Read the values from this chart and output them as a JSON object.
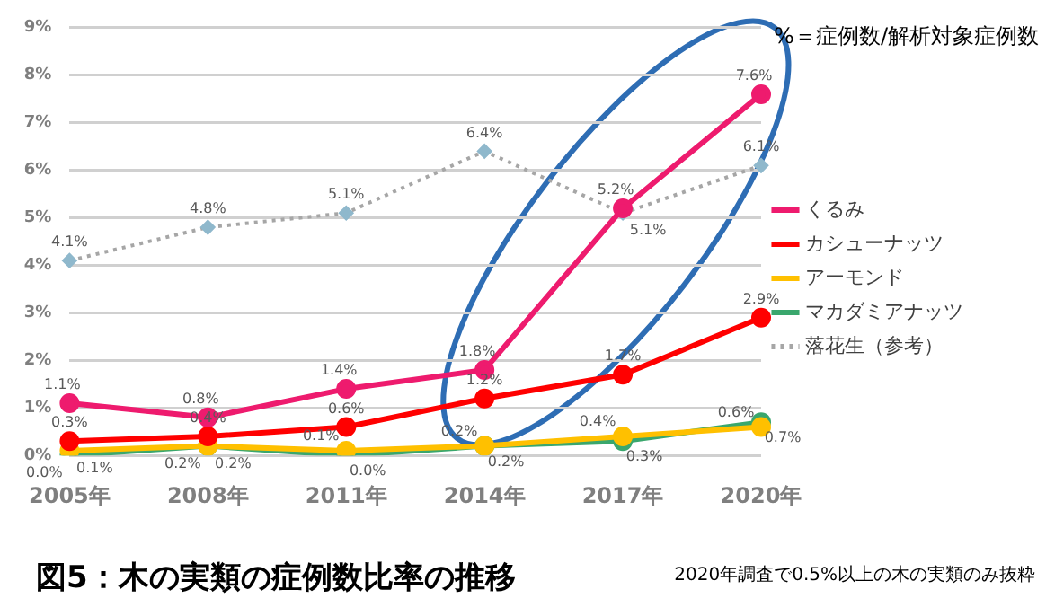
{
  "chart_data": {
    "type": "line",
    "title": "図5：木の実類の症例数比率の推移",
    "annotations": [
      "%＝症例数/解析対象症例数",
      "2020年調査で0.5%以上の木の実類のみ抜粋"
    ],
    "categories": [
      "2005年",
      "2008年",
      "2011年",
      "2014年",
      "2017年",
      "2020年"
    ],
    "series": [
      {
        "name": "くるみ",
        "color": "#ee1b6e",
        "values": [
          1.1,
          0.8,
          1.4,
          1.8,
          5.2,
          7.6
        ],
        "value_labels": [
          "1.1%",
          "0.8%",
          "1.4%",
          "1.8%",
          "5.2%",
          "7.6%"
        ]
      },
      {
        "name": "カシューナッツ",
        "color": "#ff0000",
        "values": [
          0.3,
          0.4,
          0.6,
          1.2,
          1.7,
          2.9
        ],
        "value_labels": [
          "0.3%",
          "0.4%",
          "0.6%",
          "1.2%",
          "1.7%",
          "2.9%"
        ]
      },
      {
        "name": "アーモンド",
        "color": "#ffc000",
        "values": [
          0.1,
          0.2,
          0.1,
          0.2,
          0.4,
          0.6
        ],
        "value_labels": [
          "0.1%",
          "0.2%",
          "0.1%",
          "0.2%",
          "0.4%",
          "0.6%"
        ]
      },
      {
        "name": "マカダミアナッツ",
        "color": "#3aa76d",
        "values": [
          0.0,
          0.2,
          0.0,
          0.2,
          0.3,
          0.7
        ],
        "value_labels": [
          "0.0%",
          "0.2%",
          "0.0%",
          "0.2%",
          "0.3%",
          "0.7%"
        ]
      },
      {
        "name": "落花生（参考）",
        "color": "#a6a6a6",
        "values": [
          4.1,
          4.8,
          5.1,
          6.4,
          5.1,
          6.1
        ],
        "value_labels": [
          "4.1%",
          "4.8%",
          "5.1%",
          "6.4%",
          "5.1%",
          "6.1%"
        ],
        "line_style": "dotted",
        "marker": "diamond"
      }
    ],
    "ylim": [
      0,
      9
    ],
    "yticks": [
      {
        "value": 0,
        "label": "0%"
      },
      {
        "value": 1,
        "label": "1%"
      },
      {
        "value": 2,
        "label": "2%"
      },
      {
        "value": 3,
        "label": "3%"
      },
      {
        "value": 4,
        "label": "4%"
      },
      {
        "value": 5,
        "label": "5%"
      },
      {
        "value": 6,
        "label": "6%"
      },
      {
        "value": 7,
        "label": "7%"
      },
      {
        "value": 8,
        "label": "8%"
      },
      {
        "value": 9,
        "label": "9%"
      }
    ],
    "grid": "y",
    "legend": "right",
    "marker": "circle",
    "line_style": "solid"
  }
}
